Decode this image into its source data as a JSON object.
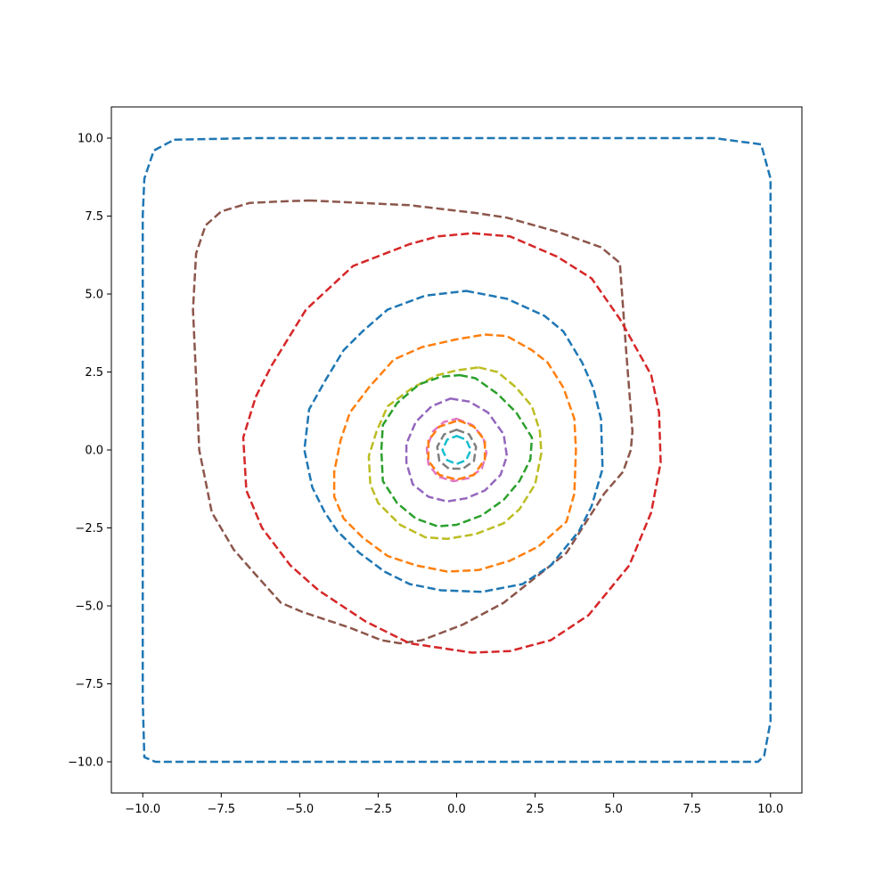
{
  "chart_data": {
    "type": "line",
    "title": "",
    "xlabel": "",
    "ylabel": "",
    "xlim": [
      -11,
      11
    ],
    "ylim": [
      -11,
      11
    ],
    "grid": false,
    "line_style": "dashed",
    "x_ticks": [
      -10.0,
      -7.5,
      -5.0,
      -2.5,
      0.0,
      2.5,
      5.0,
      7.5,
      10.0
    ],
    "y_ticks": [
      -10.0,
      -7.5,
      -5.0,
      -2.5,
      0.0,
      2.5,
      5.0,
      7.5,
      10.0
    ],
    "x_tick_labels": [
      "−10.0",
      "−7.5",
      "−5.0",
      "−2.5",
      "0.0",
      "2.5",
      "5.0",
      "7.5",
      "10.0"
    ],
    "y_tick_labels": [
      "−10.0",
      "−7.5",
      "−5.0",
      "−2.5",
      "0.0",
      "2.5",
      "5.0",
      "7.5",
      "10.0"
    ],
    "series": [
      {
        "color": "#1f77b4",
        "points": [
          [
            -9.0,
            9.95
          ],
          [
            -6.5,
            10.0
          ],
          [
            0,
            10.0
          ],
          [
            8.2,
            10.0
          ],
          [
            9.7,
            9.8
          ],
          [
            10.0,
            8.7
          ],
          [
            10.0,
            0
          ],
          [
            10.0,
            -8.7
          ],
          [
            9.8,
            -9.8
          ],
          [
            9.6,
            -10.0
          ],
          [
            0,
            -10.0
          ],
          [
            -9.6,
            -10.0
          ],
          [
            -9.95,
            -9.85
          ],
          [
            -10.0,
            -8.0
          ],
          [
            -10.0,
            0
          ],
          [
            -10.0,
            7.5
          ],
          [
            -9.95,
            8.7
          ],
          [
            -9.65,
            9.6
          ]
        ]
      },
      {
        "color": "#8c564b",
        "points": [
          [
            -4.7,
            8.0
          ],
          [
            -1.5,
            7.85
          ],
          [
            0.6,
            7.6
          ],
          [
            1.6,
            7.45
          ],
          [
            3.2,
            7.0
          ],
          [
            4.6,
            6.5
          ],
          [
            5.2,
            6.0
          ],
          [
            5.4,
            3.2
          ],
          [
            5.6,
            0.6
          ],
          [
            5.55,
            0.0
          ],
          [
            5.3,
            -0.7
          ],
          [
            4.7,
            -1.4
          ],
          [
            3.5,
            -3.3
          ],
          [
            1.5,
            -4.9
          ],
          [
            0.2,
            -5.6
          ],
          [
            -1.1,
            -6.1
          ],
          [
            -1.8,
            -6.2
          ],
          [
            -2.4,
            -6.1
          ],
          [
            -3.4,
            -5.7
          ],
          [
            -4.9,
            -5.2
          ],
          [
            -5.6,
            -4.9
          ],
          [
            -6.4,
            -4.0
          ],
          [
            -7.1,
            -3.2
          ],
          [
            -7.8,
            -2.0
          ],
          [
            -8.0,
            -1.0
          ],
          [
            -8.2,
            0.0
          ],
          [
            -8.3,
            2.3
          ],
          [
            -8.4,
            4.5
          ],
          [
            -8.3,
            6.3
          ],
          [
            -8.0,
            7.2
          ],
          [
            -7.5,
            7.65
          ],
          [
            -6.6,
            7.92
          ],
          [
            -5.6,
            7.97
          ]
        ]
      },
      {
        "color": "#d62728",
        "points": [
          [
            0.5,
            6.95
          ],
          [
            1.7,
            6.85
          ],
          [
            3.2,
            6.2
          ],
          [
            4.3,
            5.5
          ],
          [
            5.2,
            4.2
          ],
          [
            6.2,
            2.4
          ],
          [
            6.45,
            1.2
          ],
          [
            6.5,
            -0.4
          ],
          [
            6.2,
            -2.0
          ],
          [
            5.5,
            -3.7
          ],
          [
            4.2,
            -5.3
          ],
          [
            3.0,
            -6.1
          ],
          [
            1.7,
            -6.45
          ],
          [
            0.5,
            -6.5
          ],
          [
            -1.5,
            -6.2
          ],
          [
            -2.9,
            -5.5
          ],
          [
            -4.4,
            -4.5
          ],
          [
            -5.3,
            -3.7
          ],
          [
            -6.2,
            -2.5
          ],
          [
            -6.7,
            -1.3
          ],
          [
            -6.8,
            0.4
          ],
          [
            -6.4,
            1.7
          ],
          [
            -5.9,
            2.7
          ],
          [
            -4.8,
            4.5
          ],
          [
            -3.3,
            5.9
          ],
          [
            -1.5,
            6.6
          ],
          [
            -0.6,
            6.85
          ]
        ]
      },
      {
        "color": "#1f77b4",
        "points": [
          [
            0.3,
            5.1
          ],
          [
            1.6,
            4.85
          ],
          [
            2.8,
            4.3
          ],
          [
            3.4,
            3.8
          ],
          [
            4.0,
            2.8
          ],
          [
            4.35,
            2.0
          ],
          [
            4.6,
            1.0
          ],
          [
            4.65,
            -0.6
          ],
          [
            4.3,
            -1.8
          ],
          [
            3.9,
            -2.6
          ],
          [
            3.0,
            -3.7
          ],
          [
            2.1,
            -4.3
          ],
          [
            0.8,
            -4.55
          ],
          [
            -0.5,
            -4.5
          ],
          [
            -1.5,
            -4.3
          ],
          [
            -2.3,
            -3.9
          ],
          [
            -3.1,
            -3.3
          ],
          [
            -3.8,
            -2.6
          ],
          [
            -4.2,
            -2.0
          ],
          [
            -4.6,
            -1.2
          ],
          [
            -4.85,
            0.0
          ],
          [
            -4.7,
            1.3
          ],
          [
            -4.2,
            2.2
          ],
          [
            -3.6,
            3.2
          ],
          [
            -3.0,
            3.8
          ],
          [
            -2.2,
            4.5
          ],
          [
            -1.0,
            4.95
          ]
        ]
      },
      {
        "color": "#ff7f0e",
        "points": [
          [
            0.9,
            3.7
          ],
          [
            1.6,
            3.65
          ],
          [
            2.4,
            3.2
          ],
          [
            2.9,
            2.8
          ],
          [
            3.4,
            2.0
          ],
          [
            3.75,
            1.0
          ],
          [
            3.8,
            0.0
          ],
          [
            3.75,
            -1.4
          ],
          [
            3.5,
            -2.3
          ],
          [
            2.6,
            -3.1
          ],
          [
            1.7,
            -3.55
          ],
          [
            0.7,
            -3.85
          ],
          [
            -0.3,
            -3.9
          ],
          [
            -1.3,
            -3.7
          ],
          [
            -2.2,
            -3.4
          ],
          [
            -3.0,
            -2.8
          ],
          [
            -3.6,
            -2.2
          ],
          [
            -3.9,
            -1.5
          ],
          [
            -3.9,
            -0.7
          ],
          [
            -3.7,
            0.3
          ],
          [
            -3.4,
            1.2
          ],
          [
            -2.8,
            2.0
          ],
          [
            -2.0,
            2.9
          ],
          [
            -1.1,
            3.3
          ],
          [
            0.0,
            3.55
          ]
        ]
      },
      {
        "color": "#bcbd22",
        "points": [
          [
            0.7,
            2.65
          ],
          [
            1.3,
            2.5
          ],
          [
            1.9,
            2.0
          ],
          [
            2.4,
            1.4
          ],
          [
            2.65,
            0.6
          ],
          [
            2.7,
            -0.1
          ],
          [
            2.5,
            -1.1
          ],
          [
            2.0,
            -1.9
          ],
          [
            1.5,
            -2.35
          ],
          [
            0.6,
            -2.7
          ],
          [
            -0.3,
            -2.85
          ],
          [
            -1.0,
            -2.8
          ],
          [
            -1.8,
            -2.4
          ],
          [
            -2.5,
            -1.7
          ],
          [
            -2.75,
            -1.1
          ],
          [
            -2.8,
            -0.2
          ],
          [
            -2.55,
            0.6
          ],
          [
            -2.2,
            1.4
          ],
          [
            -1.4,
            2.0
          ],
          [
            -0.6,
            2.4
          ],
          [
            0.0,
            2.55
          ]
        ]
      },
      {
        "color": "#2ca02c",
        "points": [
          [
            0.1,
            2.4
          ],
          [
            0.6,
            2.3
          ],
          [
            1.3,
            1.8
          ],
          [
            1.9,
            1.2
          ],
          [
            2.4,
            0.4
          ],
          [
            2.35,
            -0.3
          ],
          [
            2.0,
            -1.0
          ],
          [
            1.5,
            -1.6
          ],
          [
            0.8,
            -2.1
          ],
          [
            0.0,
            -2.4
          ],
          [
            -0.6,
            -2.45
          ],
          [
            -1.3,
            -2.2
          ],
          [
            -1.9,
            -1.7
          ],
          [
            -2.35,
            -1.0
          ],
          [
            -2.4,
            0.0
          ],
          [
            -2.35,
            0.8
          ],
          [
            -1.9,
            1.5
          ],
          [
            -1.2,
            2.1
          ],
          [
            -0.5,
            2.35
          ]
        ]
      },
      {
        "color": "#9467bd",
        "points": [
          [
            -0.2,
            1.65
          ],
          [
            0.4,
            1.55
          ],
          [
            1.0,
            1.2
          ],
          [
            1.5,
            0.5
          ],
          [
            1.6,
            -0.2
          ],
          [
            1.4,
            -0.8
          ],
          [
            0.9,
            -1.3
          ],
          [
            0.3,
            -1.55
          ],
          [
            -0.3,
            -1.65
          ],
          [
            -0.9,
            -1.5
          ],
          [
            -1.4,
            -1.1
          ],
          [
            -1.6,
            -0.4
          ],
          [
            -1.6,
            0.2
          ],
          [
            -1.3,
            0.9
          ],
          [
            -0.8,
            1.4
          ]
        ]
      },
      {
        "color": "#e377c2",
        "points": [
          [
            0.0,
            1.0
          ],
          [
            0.5,
            0.8
          ],
          [
            0.85,
            0.4
          ],
          [
            0.95,
            -0.1
          ],
          [
            0.8,
            -0.6
          ],
          [
            0.4,
            -0.9
          ],
          [
            -0.1,
            -1.0
          ],
          [
            -0.6,
            -0.85
          ],
          [
            -0.9,
            -0.45
          ],
          [
            -0.95,
            0.05
          ],
          [
            -0.75,
            0.6
          ],
          [
            -0.4,
            0.9
          ]
        ]
      },
      {
        "color": "#ff7f0e",
        "points": [
          [
            0.05,
            0.95
          ],
          [
            0.55,
            0.75
          ],
          [
            0.9,
            0.3
          ],
          [
            0.9,
            -0.3
          ],
          [
            0.55,
            -0.8
          ],
          [
            0.0,
            -0.95
          ],
          [
            -0.55,
            -0.8
          ],
          [
            -0.9,
            -0.35
          ],
          [
            -0.9,
            0.3
          ],
          [
            -0.55,
            0.75
          ]
        ]
      },
      {
        "color": "#7f7f7f",
        "points": [
          [
            0.0,
            0.65
          ],
          [
            0.4,
            0.5
          ],
          [
            0.62,
            0.1
          ],
          [
            0.55,
            -0.35
          ],
          [
            0.2,
            -0.6
          ],
          [
            -0.25,
            -0.6
          ],
          [
            -0.55,
            -0.35
          ],
          [
            -0.62,
            0.1
          ],
          [
            -0.4,
            0.5
          ]
        ]
      },
      {
        "color": "#17becf",
        "points": [
          [
            0.0,
            0.45
          ],
          [
            0.3,
            0.33
          ],
          [
            0.45,
            0.0
          ],
          [
            0.3,
            -0.33
          ],
          [
            0.0,
            -0.45
          ],
          [
            -0.3,
            -0.33
          ],
          [
            -0.45,
            0.0
          ],
          [
            -0.3,
            0.33
          ]
        ]
      }
    ]
  }
}
